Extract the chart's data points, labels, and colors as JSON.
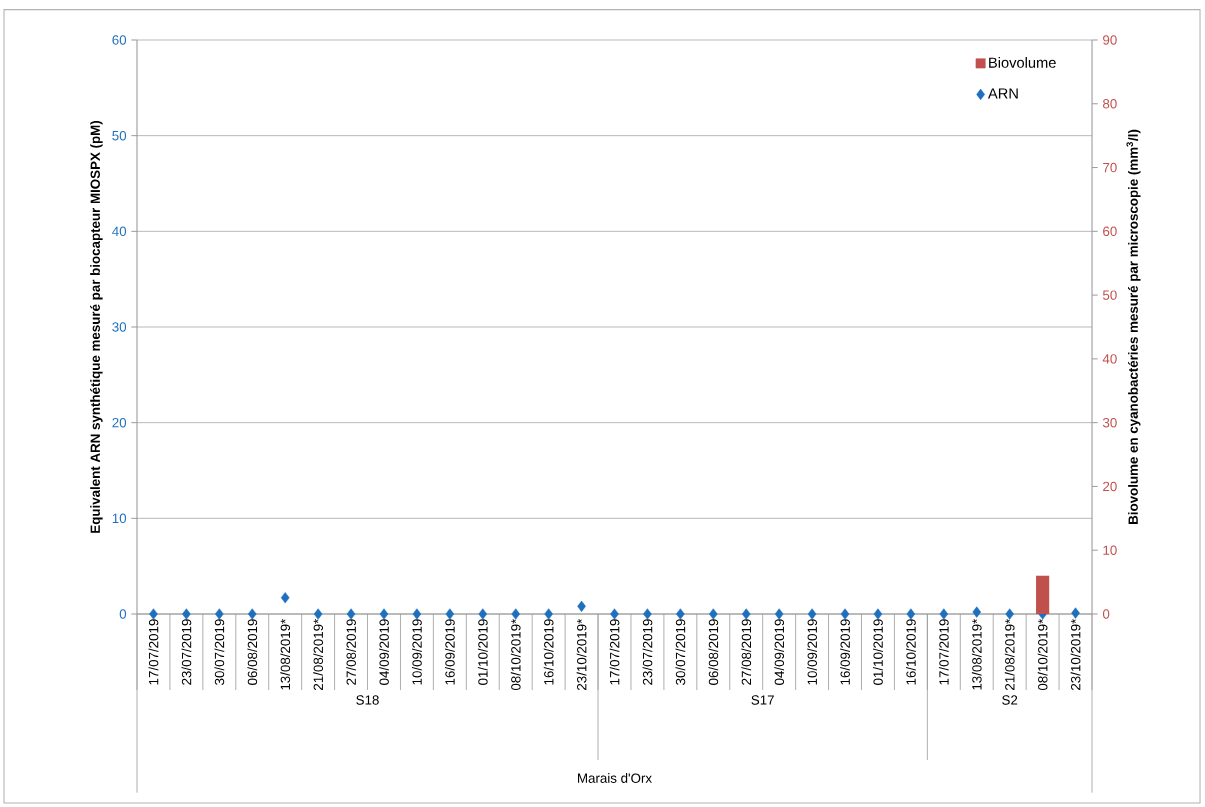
{
  "chart_data": {
    "type": "bar",
    "categories": [
      "17/07/2019",
      "23/07/2019",
      "30/07/2019",
      "06/08/2019",
      "13/08/2019*",
      "21/08/2019*",
      "27/08/2019",
      "04/09/2019",
      "10/09/2019",
      "16/09/2019",
      "01/10/2019",
      "08/10/2019*",
      "16/10/2019",
      "23/10/2019*",
      "17/07/2019",
      "23/07/2019",
      "30/07/2019",
      "06/08/2019",
      "27/08/2019",
      "04/09/2019",
      "10/09/2019",
      "16/09/2019",
      "01/10/2019",
      "16/10/2019",
      "17/07/2019",
      "13/08/2019*",
      "21/08/2019*",
      "08/10/2019*",
      "23/10/2019*"
    ],
    "series": [
      {
        "name": "Biovolume",
        "axis": "y2",
        "color": "#c0504d",
        "values": [
          null,
          null,
          null,
          null,
          null,
          null,
          null,
          null,
          null,
          null,
          null,
          null,
          null,
          null,
          null,
          null,
          null,
          null,
          null,
          null,
          null,
          null,
          null,
          null,
          null,
          null,
          null,
          6,
          null
        ]
      },
      {
        "name": "ARN",
        "type": "scatter",
        "marker": "diamond",
        "color": "#1f6fbf",
        "values": [
          0,
          0,
          0,
          0,
          1.7,
          0,
          0,
          0,
          0,
          0,
          0,
          0,
          0,
          0.8,
          0,
          0,
          0,
          0,
          0,
          0,
          0,
          0,
          0,
          0,
          0,
          0.2,
          0,
          0,
          0.1
        ]
      }
    ],
    "ylabel": "Equivalent ARN synthétique mesuré par biocapteur MIOSPX (pM)",
    "y2label": "Biovolume en cyanobactéries mesuré par microscopie (mm$^{3}$/l)",
    "annotations": [
      "S18",
      "S17",
      "S2",
      "Marais d'Orx"
    ],
    "ylim": [
      0,
      60
    ],
    "yticks": [
      0,
      10,
      20,
      30,
      40,
      50,
      60
    ],
    "y2lim": [
      0,
      90
    ],
    "y2ticks": [
      0,
      10,
      20,
      30,
      40,
      50,
      60,
      70,
      80,
      90
    ],
    "grid": "y",
    "legend": "top right"
  }
}
